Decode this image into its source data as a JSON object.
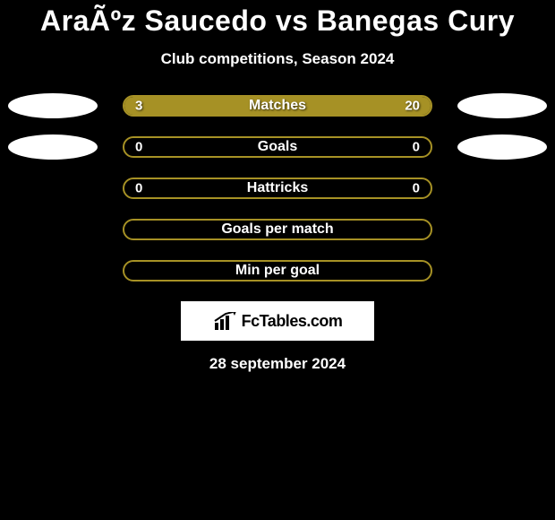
{
  "title": "AraÃºz Saucedo vs Banegas Cury",
  "subtitle": "Club competitions, Season 2024",
  "colors": {
    "background": "#000000",
    "bar_border": "#a69125",
    "bar_fill": "#a69125",
    "text": "#ffffff",
    "badge": "#ffffff"
  },
  "stats": [
    {
      "label": "Matches",
      "left_value": "3",
      "right_value": "20",
      "left_fill_pct": 13,
      "right_fill_pct": 87,
      "show_badges": true
    },
    {
      "label": "Goals",
      "left_value": "0",
      "right_value": "0",
      "left_fill_pct": 0,
      "right_fill_pct": 0,
      "show_badges": true
    },
    {
      "label": "Hattricks",
      "left_value": "0",
      "right_value": "0",
      "left_fill_pct": 0,
      "right_fill_pct": 0,
      "show_badges": false
    },
    {
      "label": "Goals per match",
      "left_value": "",
      "right_value": "",
      "left_fill_pct": 0,
      "right_fill_pct": 0,
      "show_badges": false
    },
    {
      "label": "Min per goal",
      "left_value": "",
      "right_value": "",
      "left_fill_pct": 0,
      "right_fill_pct": 0,
      "show_badges": false
    }
  ],
  "logo_text": "FcTables.com",
  "date_text": "28 september 2024"
}
